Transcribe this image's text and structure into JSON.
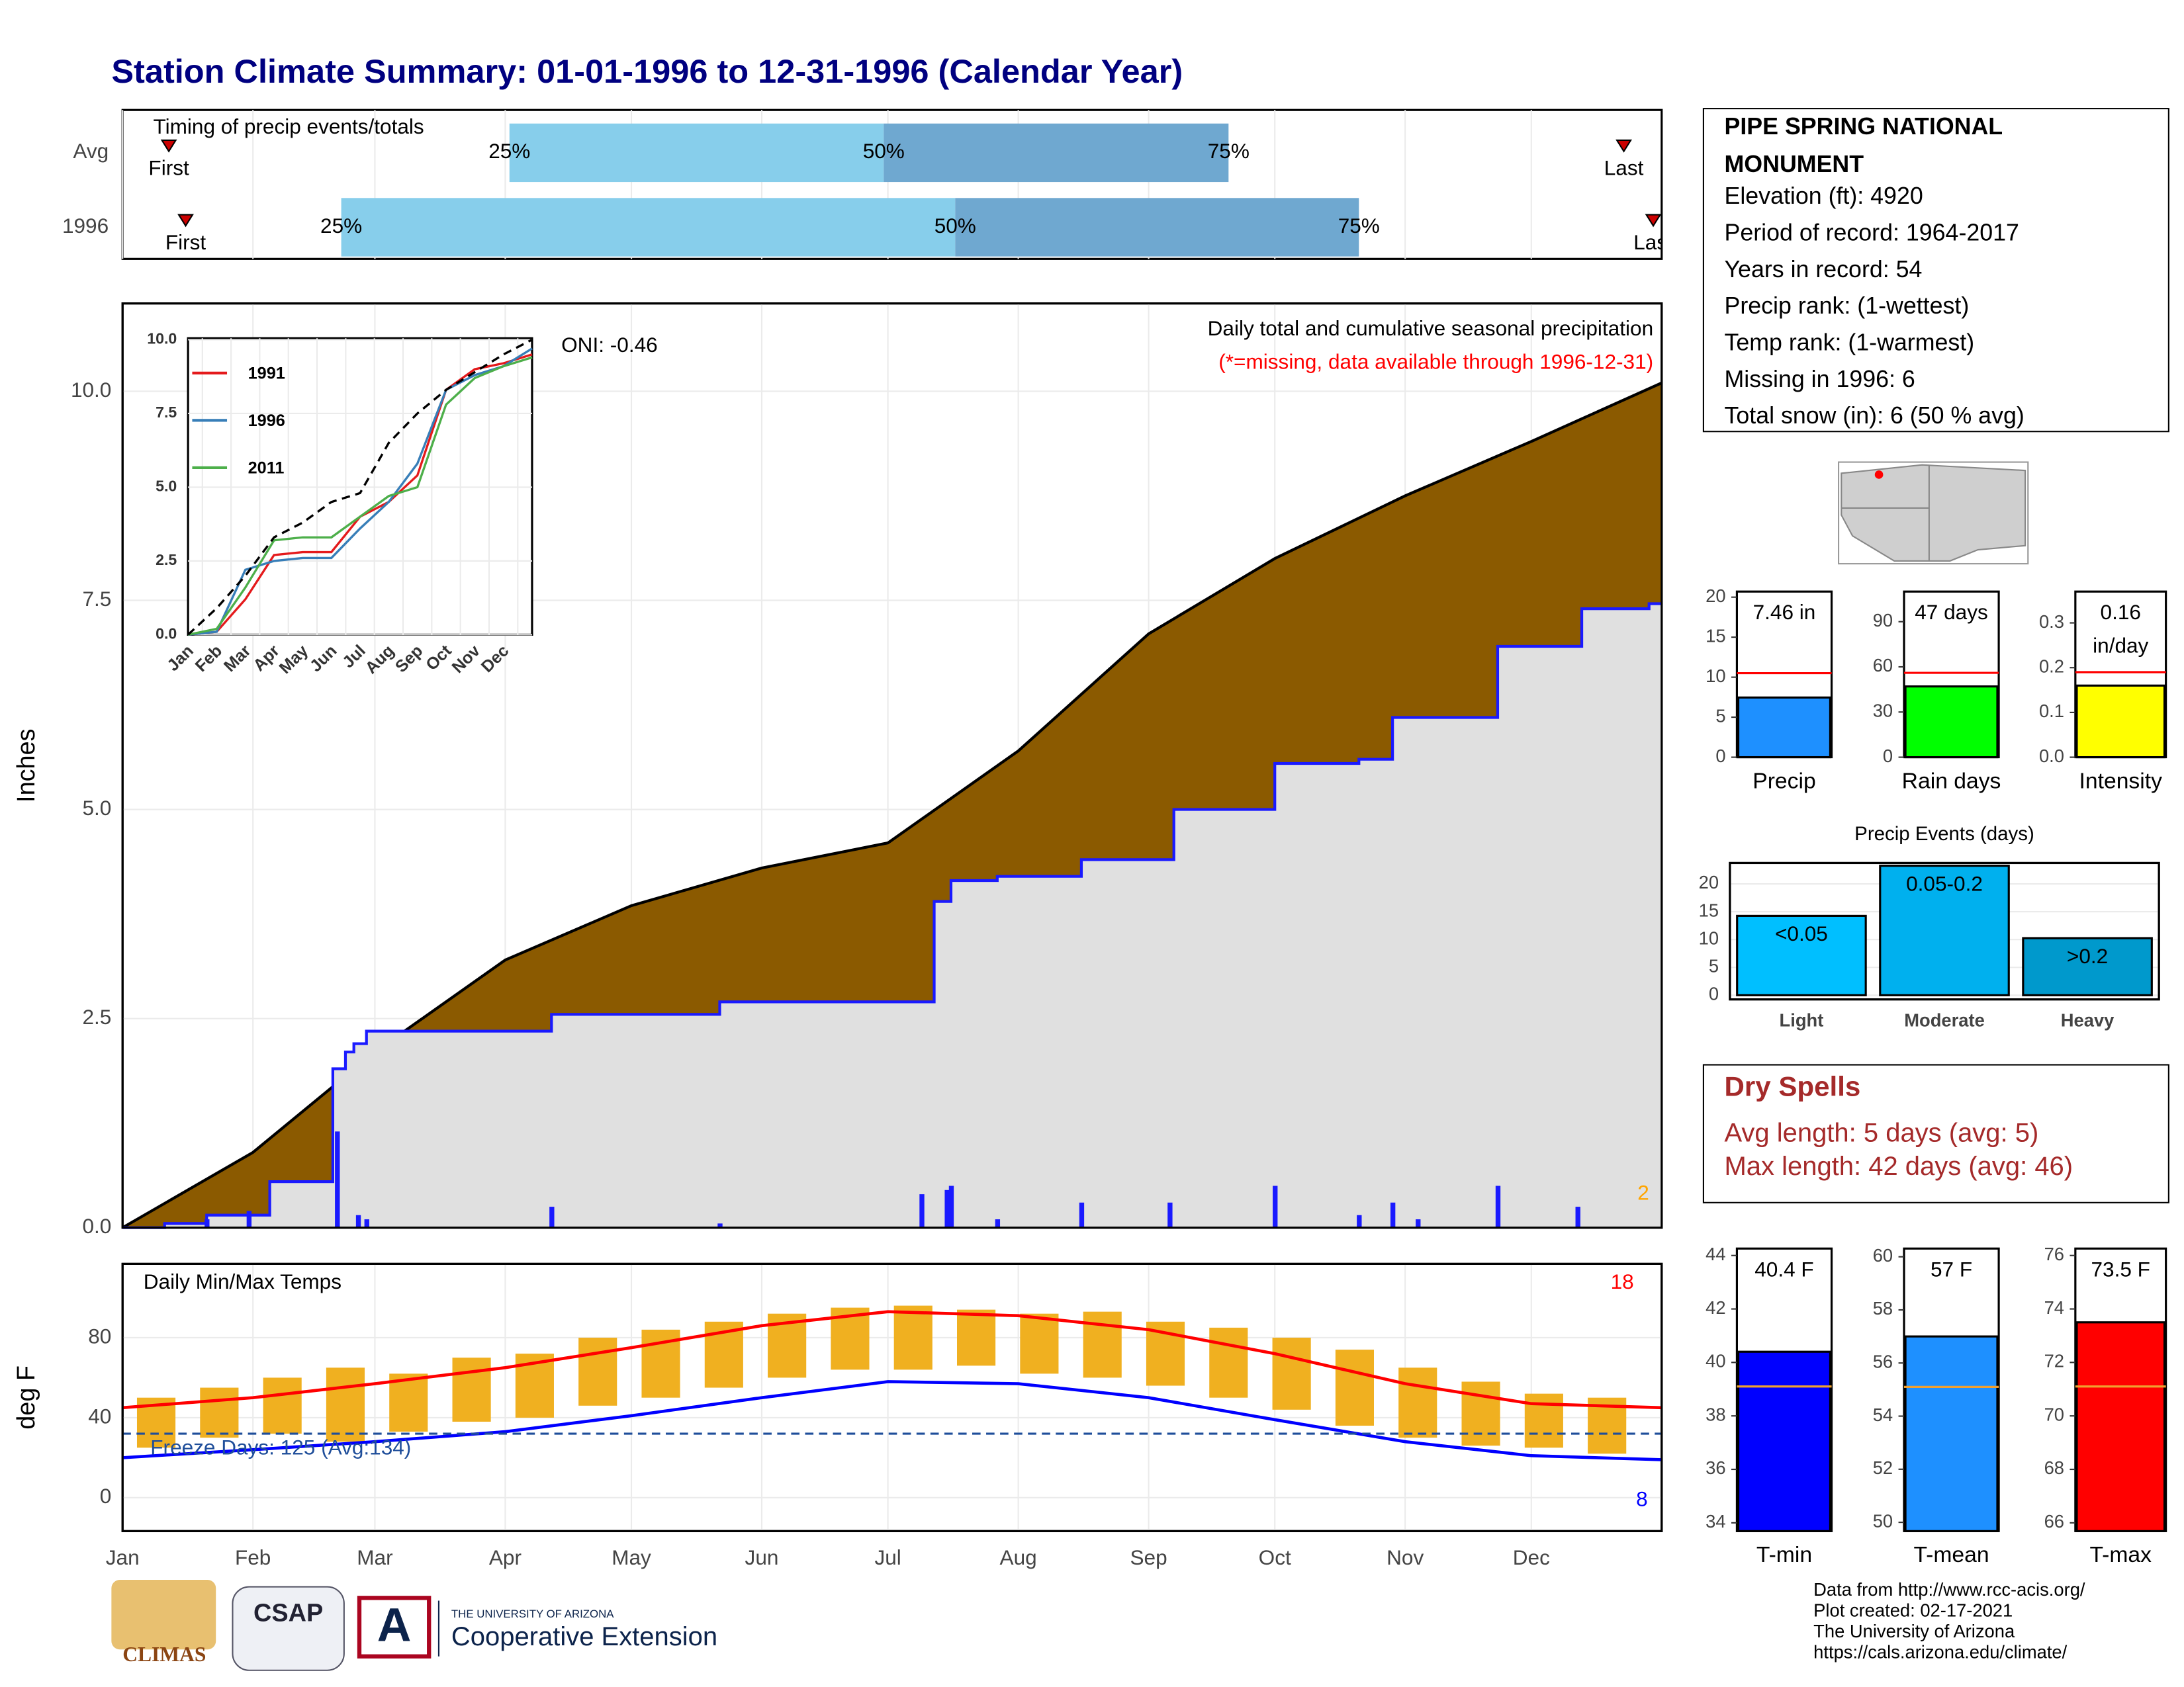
{
  "title": "Station Climate Summary: 01-01-1996 to 12-31-1996 (Calendar Year)",
  "chart_data": [
    {
      "type": "range-bar",
      "title": "Timing of precip events/totals",
      "categories": [
        "Avg",
        "1996"
      ],
      "q25": [
        92,
        52
      ],
      "q50": [
        181,
        198
      ],
      "q75": [
        263,
        294
      ],
      "first": [
        11,
        15
      ],
      "last": [
        357,
        364
      ],
      "q_labels": [
        "25%",
        "50%",
        "75%"
      ],
      "first_label": "First",
      "last_label": "Last",
      "colors": [
        "#87ceeb",
        "#6fa8d0"
      ],
      "xlim": [
        0,
        366
      ],
      "xticks": [
        0,
        31,
        60,
        91,
        121,
        152,
        182,
        213,
        244,
        274,
        305,
        335
      ],
      "grid": true
    },
    {
      "type": "cumulative",
      "ylabel": "Inches",
      "annotations": [
        "Daily total and cumulative seasonal precipitation",
        "(*=missing, data available through 1996-12-31)",
        "ONI: -0.46",
        "2"
      ],
      "series": [
        {
          "color": "#8b5a00",
          "line_color": "#000000",
          "x": [
            0,
            31,
            60,
            91,
            121,
            152,
            182,
            213,
            244,
            274,
            305,
            335,
            366
          ],
          "values": [
            0,
            0.9,
            2.1,
            3.2,
            3.85,
            4.3,
            4.6,
            5.7,
            7.1,
            8.0,
            8.75,
            9.4,
            10.1
          ]
        },
        {
          "color": "#1a1aff",
          "fill": "#e0e0e0",
          "x": [
            0,
            10,
            20,
            35,
            50,
            53,
            55,
            58,
            102,
            142,
            193,
            197,
            208,
            228,
            250,
            274,
            294,
            302,
            327,
            347,
            363,
            366
          ],
          "values": [
            0,
            0.05,
            0.15,
            0.55,
            1.9,
            2.1,
            2.2,
            2.35,
            2.55,
            2.7,
            3.9,
            4.15,
            4.2,
            4.4,
            5.0,
            5.55,
            5.6,
            6.1,
            6.95,
            7.4,
            7.46,
            7.46
          ]
        }
      ],
      "daily": {
        "color": "#1a1aff",
        "x": [
          20,
          30,
          51,
          56,
          58,
          102,
          142,
          190,
          196,
          197,
          208,
          228,
          249,
          274,
          294,
          302,
          308,
          327,
          346
        ],
        "values": [
          0.1,
          0.2,
          1.15,
          0.15,
          0.1,
          0.25,
          0.05,
          0.4,
          0.45,
          0.5,
          0.1,
          0.3,
          0.3,
          0.5,
          0.15,
          0.3,
          0.1,
          0.5,
          0.25
        ]
      },
      "xlim": [
        0,
        366
      ],
      "xticks": [
        0,
        31,
        60,
        91,
        121,
        152,
        182,
        213,
        244,
        274,
        305,
        335
      ],
      "ylim": [
        0,
        11.05
      ],
      "yticks": [
        {
          "value": 0,
          "label": "0.0"
        },
        2.5,
        {
          "value": 5,
          "label": "5.0"
        },
        7.5,
        {
          "value": 10,
          "label": "10.0"
        }
      ],
      "grid": true
    },
    {
      "type": "line",
      "x": [
        0,
        1,
        2,
        3,
        4,
        5,
        6,
        7,
        8,
        9,
        10,
        11,
        12
      ],
      "series": [
        {
          "name": "1991",
          "color": "#e41a1c",
          "values": [
            0,
            0.1,
            1.2,
            2.7,
            2.8,
            2.8,
            4.0,
            4.5,
            5.4,
            8.3,
            9.0,
            9.2,
            9.5
          ]
        },
        {
          "name": "1996",
          "color": "#377eb8",
          "values": [
            0,
            0.1,
            2.2,
            2.5,
            2.6,
            2.6,
            3.6,
            4.5,
            5.8,
            8.3,
            8.8,
            9.1,
            9.7
          ]
        },
        {
          "name": "2011",
          "color": "#4daf4a",
          "values": [
            0,
            0.2,
            1.6,
            3.2,
            3.3,
            3.3,
            4.0,
            4.7,
            5.0,
            7.8,
            8.7,
            9.1,
            9.4
          ]
        },
        {
          "color": "#000000",
          "dash": true,
          "values": [
            0,
            0.9,
            2.0,
            3.3,
            3.8,
            4.5,
            4.8,
            6.5,
            7.5,
            8.3,
            8.9,
            9.5,
            10.0
          ]
        }
      ],
      "xlim": [
        0,
        12
      ],
      "xticks": [
        {
          "value": 0.5,
          "label": "Jan"
        },
        {
          "value": 1.5,
          "label": "Feb"
        },
        {
          "value": 2.5,
          "label": "Mar"
        },
        {
          "value": 3.5,
          "label": "Apr"
        },
        {
          "value": 4.5,
          "label": "May"
        },
        {
          "value": 5.5,
          "label": "Jun"
        },
        {
          "value": 6.5,
          "label": "Jul"
        },
        {
          "value": 7.5,
          "label": "Aug"
        },
        {
          "value": 8.5,
          "label": "Sep"
        },
        {
          "value": 9.5,
          "label": "Oct"
        },
        {
          "value": 10.5,
          "label": "Nov"
        },
        {
          "value": 11.5,
          "label": "Dec"
        }
      ],
      "ylim": [
        0,
        10.05
      ],
      "yticks": [
        {
          "value": 0,
          "label": "0.0"
        },
        2.5,
        {
          "value": 5,
          "label": "5.0"
        },
        7.5,
        {
          "value": 10,
          "label": "10.0"
        }
      ],
      "grid": true
    },
    {
      "type": "temperature",
      "title": "Daily Min/Max Temps",
      "ylabel": "deg F",
      "annotations": [
        "Freeze Days: 125 (Avg:134)",
        "18",
        "8"
      ],
      "bars": {
        "color": "#f0b020",
        "x": [
          8,
          23,
          38,
          53,
          68,
          83,
          98,
          113,
          128,
          143,
          158,
          173,
          188,
          203,
          218,
          233,
          248,
          263,
          278,
          293,
          308,
          323,
          338,
          353
        ],
        "low": [
          25,
          30,
          32,
          28,
          33,
          38,
          40,
          46,
          50,
          55,
          60,
          64,
          64,
          66,
          62,
          60,
          56,
          50,
          44,
          36,
          30,
          26,
          25,
          22
        ],
        "high": [
          50,
          55,
          60,
          65,
          62,
          70,
          72,
          80,
          84,
          88,
          92,
          95,
          96,
          94,
          92,
          93,
          88,
          85,
          80,
          74,
          65,
          58,
          52,
          50
        ]
      },
      "lines": [
        {
          "color": "#ff0000",
          "x": [
            0,
            31,
            60,
            91,
            121,
            152,
            182,
            213,
            244,
            274,
            305,
            335,
            366
          ],
          "values": [
            45,
            50,
            57,
            65,
            75,
            86,
            93,
            91,
            84,
            72,
            57,
            47,
            45
          ]
        },
        {
          "color": "#0000ff",
          "x": [
            0,
            31,
            60,
            91,
            121,
            152,
            182,
            213,
            244,
            274,
            305,
            335,
            366
          ],
          "values": [
            20,
            24,
            28,
            33,
            41,
            50,
            58,
            57,
            50,
            39,
            28,
            21,
            19
          ]
        }
      ],
      "freeze": 32,
      "xlim": [
        0,
        366
      ],
      "xticks": [
        {
          "value": 0,
          "label": "Jan"
        },
        {
          "value": 31,
          "label": "Feb"
        },
        {
          "value": 60,
          "label": "Mar"
        },
        {
          "value": 91,
          "label": "Apr"
        },
        {
          "value": 121,
          "label": "May"
        },
        {
          "value": 152,
          "label": "Jun"
        },
        {
          "value": 182,
          "label": "Jul"
        },
        {
          "value": 213,
          "label": "Aug"
        },
        {
          "value": 244,
          "label": "Sep"
        },
        {
          "value": 274,
          "label": "Oct"
        },
        {
          "value": 305,
          "label": "Nov"
        },
        {
          "value": 335,
          "label": "Dec"
        }
      ],
      "ylim": [
        -16.7,
        116.9
      ],
      "yticks": [
        0,
        40,
        80
      ],
      "grid": true
    },
    {
      "type": "stat-bar",
      "category": "Precip",
      "value": 7.46,
      "value_label": "7.46 in",
      "average": 10.5,
      "color": "#1e90ff",
      "avg_color": "#ff0000",
      "ylim": [
        0,
        20.7
      ],
      "yticks": [
        0,
        5,
        10,
        15,
        20
      ]
    },
    {
      "type": "stat-bar",
      "category": "Rain days",
      "value": 47,
      "value_label": "47 days",
      "average": 56,
      "color": "#00ff00",
      "avg_color": "#ff0000",
      "ylim": [
        0,
        110
      ],
      "yticks": [
        0,
        30,
        60,
        90
      ]
    },
    {
      "type": "stat-bar",
      "category": "Intensity",
      "value": 0.16,
      "value_label": "0.16",
      "unit": "in/day",
      "average": 0.19,
      "color": "#ffff00",
      "avg_color": "#ff0000",
      "ylim": [
        0,
        0.37
      ],
      "yticks": [
        {
          "value": 0,
          "label": "0.0"
        },
        0.1,
        0.2,
        0.3
      ]
    },
    {
      "type": "bar",
      "title": "Precip Events (days)",
      "categories": [
        "Light",
        "Moderate",
        "Heavy"
      ],
      "values": [
        14.25,
        23.25,
        10.25
      ],
      "value_labels": [
        "<0.05",
        "0.05-0.2",
        ">0.2"
      ],
      "colors": [
        "#00bfff",
        "#00b0ee",
        "#0099cc"
      ],
      "ylim": [
        -0.75,
        23.75
      ],
      "yticks": [
        0,
        5,
        10,
        15,
        20
      ],
      "grid": true
    },
    {
      "type": "stat-bar",
      "category": "T-min",
      "value": 40.4,
      "value_label": "40.4 F",
      "average": 39.1,
      "color": "#0000ff",
      "avg_color": "#f0a030",
      "ylim": [
        33.69,
        44.26
      ],
      "yticks": [
        34,
        36,
        38,
        40,
        42,
        44
      ]
    },
    {
      "type": "stat-bar",
      "category": "T-mean",
      "value": 57,
      "value_label": "57 F",
      "average": 55.1,
      "color": "#1e90ff",
      "avg_color": "#f0a030",
      "ylim": [
        49.67,
        60.31
      ],
      "yticks": [
        50,
        52,
        54,
        56,
        58,
        60
      ]
    },
    {
      "type": "stat-bar",
      "category": "T-max",
      "value": 73.5,
      "value_label": "73.5 F",
      "average": 71.1,
      "color": "#ff0000",
      "avg_color": "#f0a030",
      "ylim": [
        65.69,
        76.26
      ],
      "yticks": [
        66,
        68,
        70,
        72,
        74,
        76
      ]
    }
  ],
  "station": {
    "name": [
      "PIPE SPRING NATIONAL",
      "MONUMENT"
    ],
    "lines": [
      "Elevation (ft): 4920",
      "Period of record: 1964-2017",
      "Years in record: 54",
      "Precip rank:  (1-wettest)",
      "Temp rank:  (1-warmest)",
      "Missing in 1996: 6",
      "Total snow (in): 6 (50 % avg)"
    ]
  },
  "dry_spells": {
    "title": "Dry Spells",
    "lines": [
      "Avg length: 5 days (avg: 5)",
      "Max length: 42 days (avg: 46)"
    ]
  },
  "footer": {
    "credits": [
      "Data from http://www.rcc-acis.org/",
      "Plot created: 02-17-2021",
      "The University of Arizona",
      "https://cals.arizona.edu/climate/"
    ],
    "logos": [
      "CLIMAS",
      "CSAP",
      "THE UNIVERSITY OF ARIZONA",
      "Cooperative Extension"
    ]
  }
}
